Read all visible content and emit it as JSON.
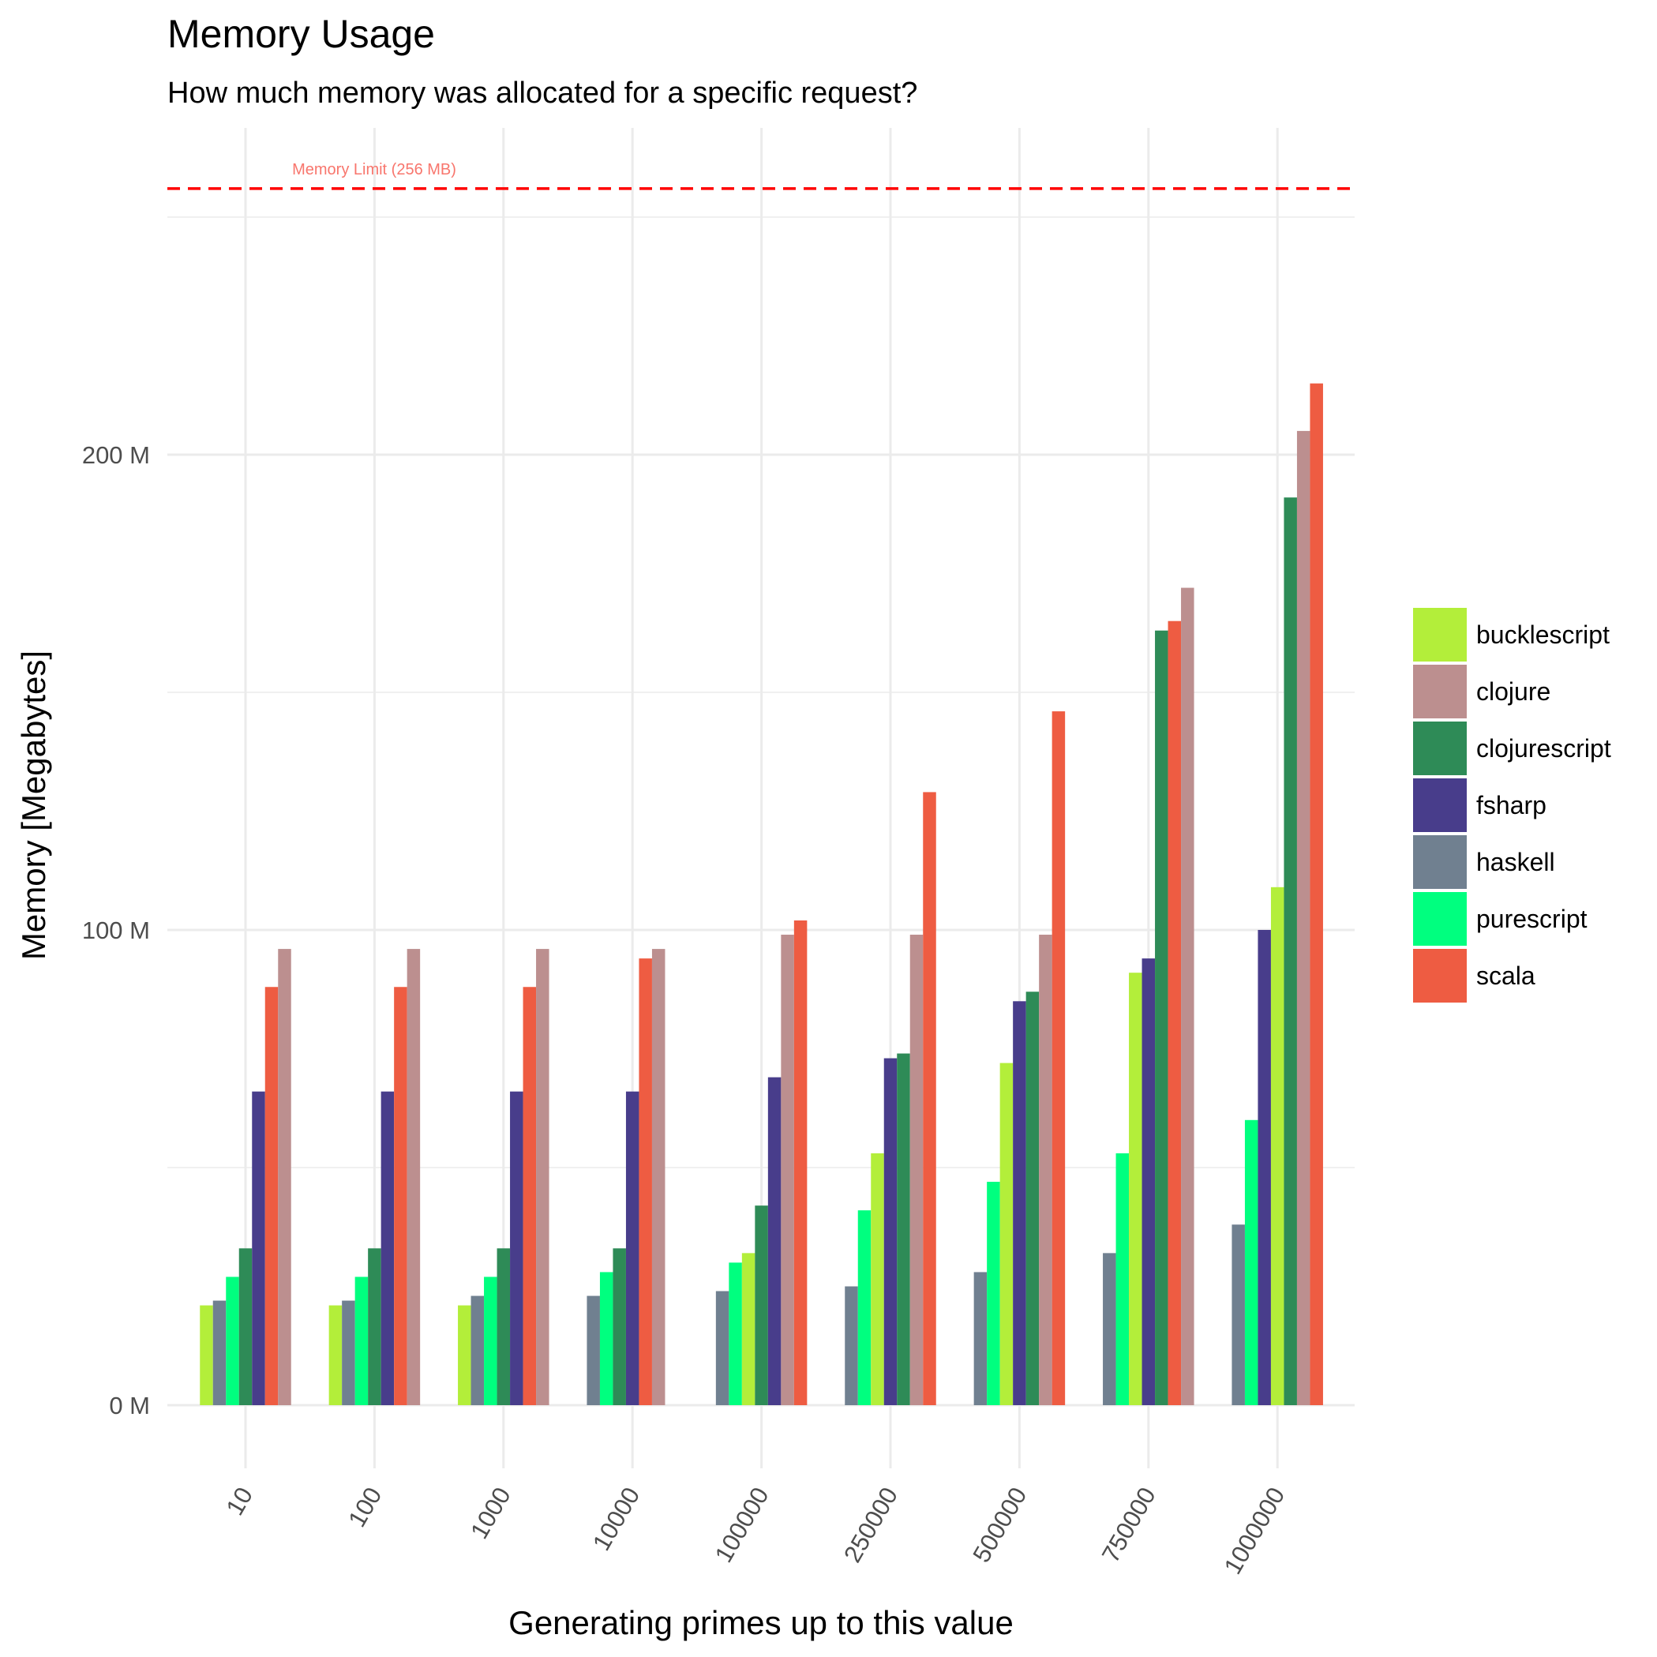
{
  "chart_data": {
    "type": "bar",
    "title": "Memory Usage",
    "subtitle": "How much memory was allocated for a specific request?",
    "xlabel": "Generating primes up to this value",
    "ylabel": "Memory [Megabytes]",
    "ylim": [
      -11,
      270
    ],
    "yticks": [
      {
        "value": 0,
        "label": "0 M"
      },
      {
        "value": 100,
        "label": "100 M"
      },
      {
        "value": 200,
        "label": "200 M"
      }
    ],
    "y_minor_gridlines": [
      50,
      150,
      250
    ],
    "grid": true,
    "legend_position": "right",
    "categories": [
      "10",
      "100",
      "1000",
      "10000",
      "100000",
      "250000",
      "500000",
      "750000",
      "1000000"
    ],
    "series": [
      {
        "name": "bucklescript",
        "color": "#b3ee3a",
        "values": [
          21,
          21,
          21,
          null,
          32,
          53,
          72,
          91,
          109
        ]
      },
      {
        "name": "clojure",
        "color": "#bc8f8f",
        "values": [
          96,
          96,
          96,
          96,
          99,
          99,
          99,
          172,
          205
        ]
      },
      {
        "name": "clojurescript",
        "color": "#2e8b57",
        "values": [
          33,
          33,
          33,
          33,
          42,
          74,
          87,
          163,
          191
        ]
      },
      {
        "name": "fsharp",
        "color": "#483d8b",
        "values": [
          66,
          66,
          66,
          66,
          69,
          73,
          85,
          94,
          100
        ]
      },
      {
        "name": "haskell",
        "color": "#708090",
        "values": [
          22,
          22,
          23,
          23,
          24,
          25,
          28,
          32,
          38
        ]
      },
      {
        "name": "purescript",
        "color": "#00ff7f",
        "values": [
          27,
          27,
          27,
          28,
          30,
          41,
          47,
          53,
          60
        ]
      },
      {
        "name": "scala",
        "color": "#ee5c42",
        "values": [
          88,
          88,
          88,
          94,
          102,
          129,
          146,
          165,
          215
        ]
      }
    ],
    "category_series_order": [
      [
        "bucklescript",
        "haskell",
        "purescript",
        "clojurescript",
        "fsharp",
        "scala",
        "clojure"
      ],
      [
        "bucklescript",
        "haskell",
        "purescript",
        "clojurescript",
        "fsharp",
        "scala",
        "clojure"
      ],
      [
        "bucklescript",
        "haskell",
        "purescript",
        "clojurescript",
        "fsharp",
        "scala",
        "clojure"
      ],
      [
        "haskell",
        "purescript",
        "clojurescript",
        "fsharp",
        "scala",
        "clojure"
      ],
      [
        "haskell",
        "purescript",
        "bucklescript",
        "clojurescript",
        "fsharp",
        "clojure",
        "scala"
      ],
      [
        "haskell",
        "purescript",
        "bucklescript",
        "fsharp",
        "clojurescript",
        "clojure",
        "scala"
      ],
      [
        "haskell",
        "purescript",
        "bucklescript",
        "fsharp",
        "clojurescript",
        "clojure",
        "scala"
      ],
      [
        "haskell",
        "purescript",
        "bucklescript",
        "fsharp",
        "clojurescript",
        "scala",
        "clojure"
      ],
      [
        "haskell",
        "purescript",
        "fsharp",
        "bucklescript",
        "clojurescript",
        "clojure",
        "scala"
      ]
    ],
    "reference_line": {
      "value": 256,
      "label": "Memory Limit (256 MB)",
      "color": "#ff0000",
      "label_color": "#f8766d",
      "style": "dashed"
    }
  }
}
